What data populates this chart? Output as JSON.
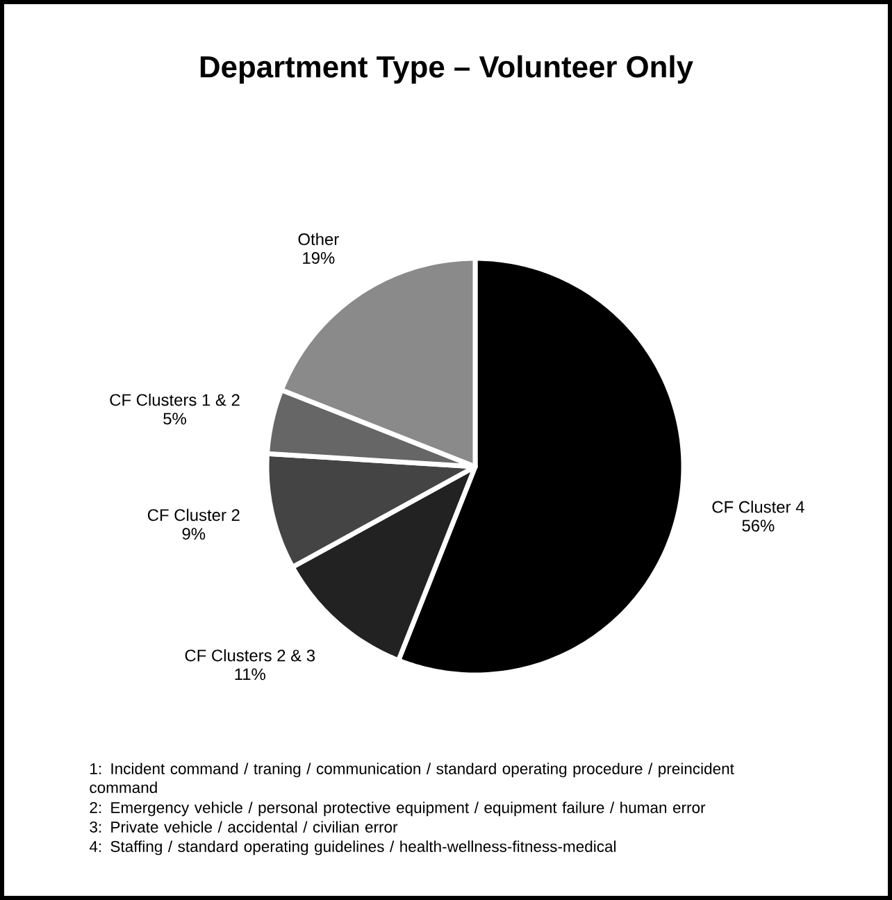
{
  "chart_data": {
    "type": "pie",
    "title": "Department Type – Volunteer Only",
    "categories": [
      "CF Cluster 4",
      "CF Clusters 2 & 3",
      "CF Cluster 2",
      "CF Clusters 1 & 2",
      "Other"
    ],
    "values": [
      56,
      11,
      9,
      5,
      19
    ],
    "value_labels": [
      "56%",
      "11%",
      "9%",
      "5%",
      "19%"
    ],
    "legend": false,
    "colors": [
      "#000000",
      "#222222",
      "#444444",
      "#666666",
      "#8a8a8a"
    ],
    "annotations": [
      "1:  Incident command / traning / communication / standard operating procedure / preincident command",
      "2:  Emergency vehicle / personal protective equipment / equipment failure / human error",
      "3:  Private vehicle / accidental / civilian error",
      "4:  Staffing / standard operating guidelines / health-wellness-fitness-medical"
    ]
  }
}
